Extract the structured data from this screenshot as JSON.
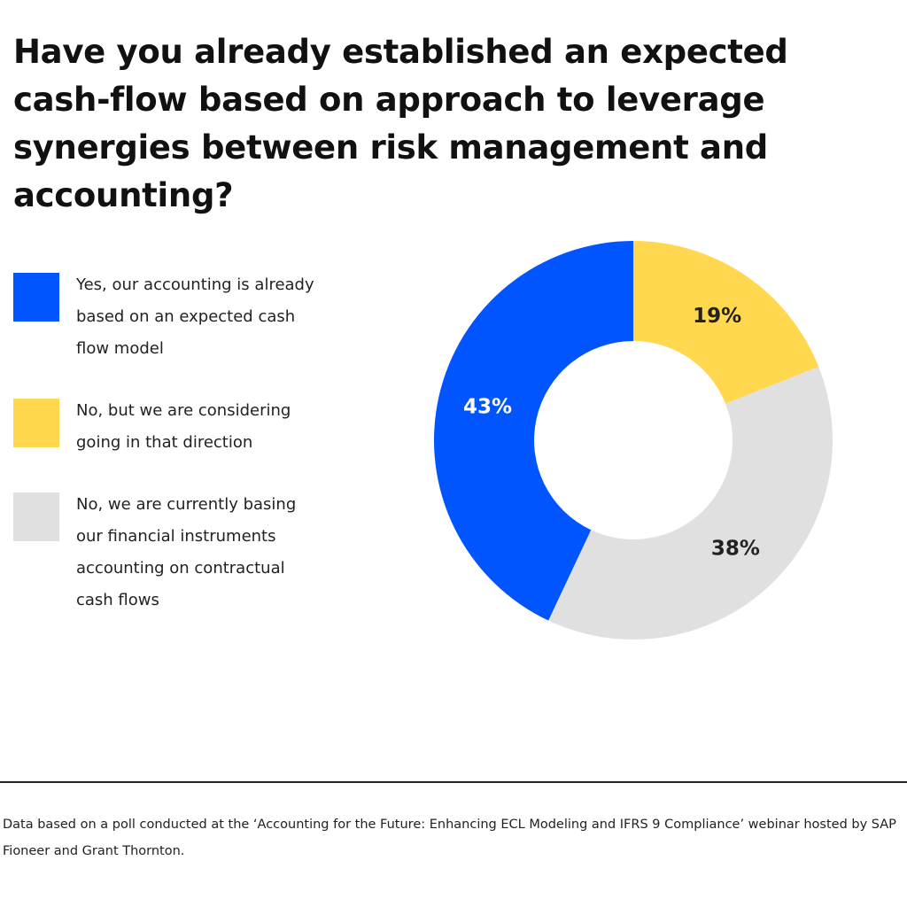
{
  "chart_data": {
    "type": "donut",
    "title": "Have you already established an expected cash-flow based on approach to leverage synergies between risk management and accounting?",
    "categories": [
      "Yes, our accounting is already based on an expected cash flow model",
      "No, but we are considering going in that direction",
      "No, we are currently basing our financial instruments accounting on contractual cash flows"
    ],
    "values": [
      43,
      19,
      38
    ],
    "value_labels": [
      "43%",
      "19%",
      "38%"
    ],
    "colors": [
      "#0055ff",
      "#ffd84f",
      "#e0e0e0"
    ],
    "label_colors": [
      "#ffffff",
      "#222222",
      "#222222"
    ],
    "footnote": "Data based on a poll conducted at the ‘Accounting for the Future:  Enhancing ECL Modeling and IFRS 9 Compliance’ webinar hosted by SAP Fioneer and Grant Thornton."
  }
}
